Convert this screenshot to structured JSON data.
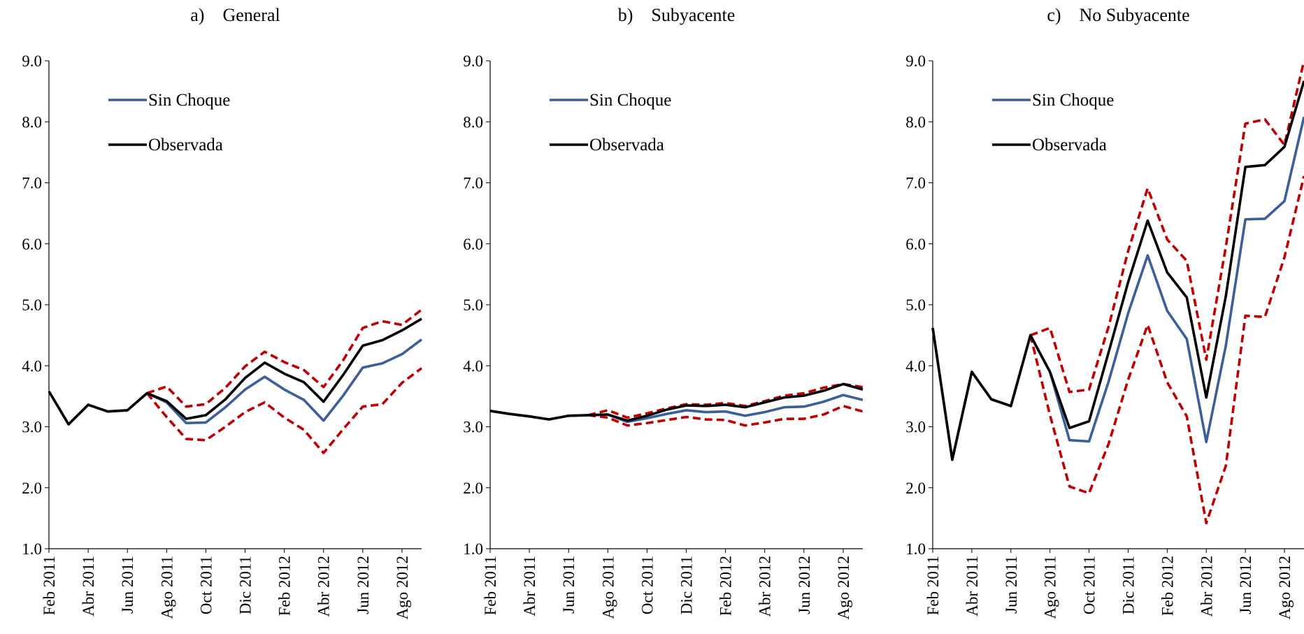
{
  "chart_data": [
    {
      "type": "line",
      "title": "a)    General",
      "categories": [
        "Feb 2011",
        null,
        "Abr 2011",
        null,
        "Jun 2011",
        null,
        "Ago 2011",
        null,
        "Oct 2011",
        null,
        "Dic 2011",
        null,
        "Feb 2012",
        null,
        "Abr 2012",
        null,
        "Jun 2012",
        null,
        "Ago 2012",
        null
      ],
      "ylim": [
        1,
        9
      ],
      "yticks": [
        {
          "value": 1,
          "label": "1.0"
        },
        {
          "value": 2,
          "label": "2.0"
        },
        {
          "value": 3,
          "label": "3.0"
        },
        {
          "value": 4,
          "label": "4.0"
        },
        {
          "value": 5,
          "label": "5.0"
        },
        {
          "value": 6,
          "label": "6.0"
        },
        {
          "value": 7,
          "label": "7.0"
        },
        {
          "value": 8,
          "label": "8.0"
        },
        {
          "value": 9,
          "label": "9.0"
        }
      ],
      "series": [
        {
          "color": "#c00000",
          "style": "dashed",
          "values": [
            null,
            null,
            null,
            null,
            null,
            3.55,
            3.66,
            3.33,
            3.37,
            3.64,
            3.99,
            4.23,
            4.06,
            3.93,
            3.65,
            4.09,
            4.62,
            4.73,
            4.67,
            4.92
          ]
        },
        {
          "color": "#c00000",
          "style": "dashed",
          "values": [
            null,
            null,
            null,
            null,
            null,
            3.55,
            3.16,
            2.8,
            2.78,
            3.0,
            3.24,
            3.4,
            3.15,
            2.95,
            2.57,
            2.96,
            3.33,
            3.37,
            3.72,
            3.96
          ]
        },
        {
          "name": "Sin Choque",
          "color": "#3a5f9a",
          "style": "solid",
          "values": [
            3.58,
            3.04,
            3.36,
            3.25,
            3.27,
            3.55,
            3.4,
            3.06,
            3.07,
            3.32,
            3.61,
            3.82,
            3.61,
            3.44,
            3.1,
            3.51,
            3.97,
            4.04,
            4.19,
            4.43
          ]
        },
        {
          "name": "Observada",
          "color": "#000000",
          "style": "solid",
          "values": [
            3.58,
            3.04,
            3.36,
            3.25,
            3.27,
            3.55,
            3.42,
            3.13,
            3.19,
            3.45,
            3.8,
            4.05,
            3.87,
            3.73,
            3.41,
            3.85,
            4.33,
            4.42,
            4.58,
            4.77
          ]
        }
      ]
    },
    {
      "type": "line",
      "title": "b)    Subyacente",
      "categories": [
        "Feb 2011",
        null,
        "Abr 2011",
        null,
        "Jun 2011",
        null,
        "Ago 2011",
        null,
        "Oct 2011",
        null,
        "Dic 2011",
        null,
        "Feb 2012",
        null,
        "Abr 2012",
        null,
        "Jun 2012",
        null,
        "Ago 2012",
        null
      ],
      "ylim": [
        1,
        9
      ],
      "yticks": [
        {
          "value": 1,
          "label": "1.0"
        },
        {
          "value": 2,
          "label": "2.0"
        },
        {
          "value": 3,
          "label": "3.0"
        },
        {
          "value": 4,
          "label": "4.0"
        },
        {
          "value": 5,
          "label": "5.0"
        },
        {
          "value": 6,
          "label": "6.0"
        },
        {
          "value": 7,
          "label": "7.0"
        },
        {
          "value": 8,
          "label": "8.0"
        },
        {
          "value": 9,
          "label": "9.0"
        }
      ],
      "series": [
        {
          "color": "#c00000",
          "style": "dashed",
          "values": [
            null,
            null,
            null,
            null,
            null,
            3.19,
            3.27,
            3.15,
            3.22,
            3.3,
            3.37,
            3.36,
            3.39,
            3.34,
            3.42,
            3.51,
            3.55,
            3.64,
            3.7,
            3.65
          ]
        },
        {
          "color": "#c00000",
          "style": "dashed",
          "values": [
            null,
            null,
            null,
            null,
            null,
            3.19,
            3.15,
            3.02,
            3.06,
            3.11,
            3.16,
            3.12,
            3.11,
            3.02,
            3.07,
            3.13,
            3.13,
            3.2,
            3.34,
            3.25
          ]
        },
        {
          "name": "Sin Choque",
          "color": "#3a5f9a",
          "style": "solid",
          "values": [
            3.26,
            3.21,
            3.17,
            3.12,
            3.18,
            3.19,
            3.2,
            3.08,
            3.14,
            3.21,
            3.27,
            3.24,
            3.25,
            3.18,
            3.24,
            3.32,
            3.33,
            3.41,
            3.52,
            3.44
          ]
        },
        {
          "name": "Observada",
          "color": "#000000",
          "style": "solid",
          "values": [
            3.26,
            3.21,
            3.17,
            3.12,
            3.18,
            3.19,
            3.2,
            3.1,
            3.18,
            3.28,
            3.35,
            3.34,
            3.36,
            3.32,
            3.4,
            3.48,
            3.51,
            3.59,
            3.7,
            3.61
          ]
        }
      ]
    },
    {
      "type": "line",
      "title": "c)    No Subyacente",
      "categories": [
        "Feb 2011",
        null,
        "Abr 2011",
        null,
        "Jun 2011",
        null,
        "Ago 2011",
        null,
        "Oct 2011",
        null,
        "Dic 2011",
        null,
        "Feb 2012",
        null,
        "Abr 2012",
        null,
        "Jun 2012",
        null,
        "Ago 2012",
        null
      ],
      "ylim": [
        1,
        9
      ],
      "yticks": [
        {
          "value": 1,
          "label": "1.0"
        },
        {
          "value": 2,
          "label": "2.0"
        },
        {
          "value": 3,
          "label": "3.0"
        },
        {
          "value": 4,
          "label": "4.0"
        },
        {
          "value": 5,
          "label": "5.0"
        },
        {
          "value": 6,
          "label": "6.0"
        },
        {
          "value": 7,
          "label": "7.0"
        },
        {
          "value": 8,
          "label": "8.0"
        },
        {
          "value": 9,
          "label": "9.0"
        }
      ],
      "series": [
        {
          "color": "#c00000",
          "style": "dashed",
          "values": [
            null,
            null,
            null,
            null,
            null,
            4.5,
            4.62,
            3.57,
            3.61,
            4.64,
            5.88,
            6.91,
            6.07,
            5.72,
            4.1,
            5.95,
            7.97,
            8.04,
            7.62,
            9.0
          ]
        },
        {
          "color": "#c00000",
          "style": "dashed",
          "values": [
            null,
            null,
            null,
            null,
            null,
            4.5,
            3.19,
            2.02,
            1.91,
            2.72,
            3.77,
            4.67,
            3.73,
            3.17,
            1.42,
            2.36,
            4.82,
            4.8,
            5.78,
            7.11
          ]
        },
        {
          "name": "Sin Choque",
          "color": "#3a5f9a",
          "style": "solid",
          "values": [
            4.62,
            2.46,
            3.9,
            3.45,
            3.34,
            4.5,
            3.9,
            2.78,
            2.76,
            3.74,
            4.86,
            5.81,
            4.9,
            4.44,
            2.75,
            4.33,
            6.4,
            6.41,
            6.7,
            8.08
          ]
        },
        {
          "name": "Observada",
          "color": "#000000",
          "style": "solid",
          "values": [
            4.62,
            2.46,
            3.9,
            3.45,
            3.34,
            4.5,
            3.9,
            2.98,
            3.09,
            4.22,
            5.37,
            6.38,
            5.53,
            5.12,
            3.48,
            5.14,
            7.26,
            7.29,
            7.59,
            8.67
          ]
        }
      ]
    }
  ]
}
